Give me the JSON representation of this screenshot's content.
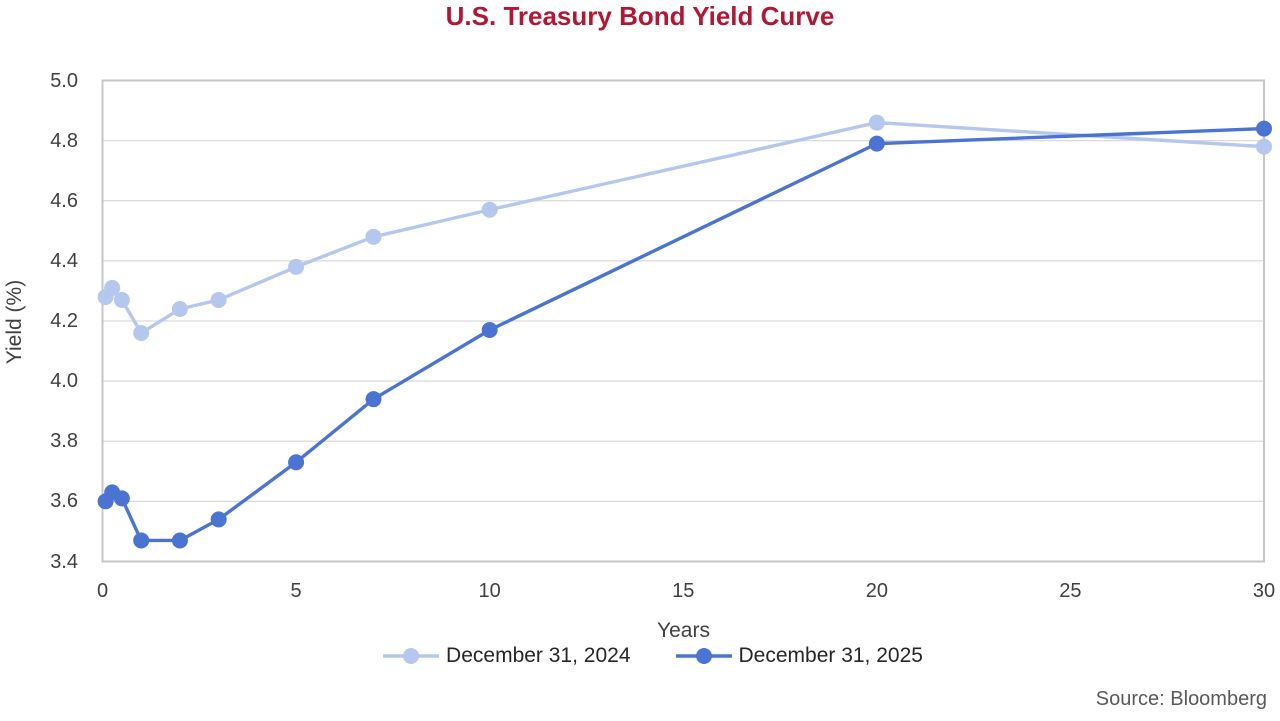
{
  "title": {
    "text": "U.S. Treasury Bond Yield Curve",
    "color": "#B21733"
  },
  "source": "Source: Bloomberg",
  "colors": {
    "gridline": "#D9D9D9",
    "plot_border": "#C6C6C6",
    "axis_text": "#404040",
    "series_2024": "#B5C7ED",
    "series_2025": "#4A73D2"
  },
  "chart_data": {
    "type": "line",
    "title": "U.S. Treasury Bond Yield Curve",
    "xlabel": "Years",
    "ylabel": "Yield (%)",
    "xlim": [
      0,
      30
    ],
    "ylim": [
      3.4,
      5.0
    ],
    "x_ticks": [
      0,
      5,
      10,
      15,
      20,
      25,
      30
    ],
    "y_ticks": [
      3.4,
      3.6,
      3.8,
      4.0,
      4.2,
      4.4,
      4.6,
      4.8,
      5.0
    ],
    "grid": "horizontal",
    "legend_position": "bottom",
    "x": [
      0.08,
      0.25,
      0.5,
      1,
      2,
      3,
      5,
      7,
      10,
      20,
      30
    ],
    "series": [
      {
        "name": "December 31, 2024",
        "color": "#B5C7ED",
        "values": [
          4.28,
          4.31,
          4.27,
          4.16,
          4.24,
          4.27,
          4.38,
          4.48,
          4.57,
          4.86,
          4.78
        ]
      },
      {
        "name": "December 31, 2025",
        "color": "#4A73D2",
        "values": [
          3.6,
          3.63,
          3.61,
          3.47,
          3.47,
          3.54,
          3.73,
          3.94,
          4.17,
          4.79,
          4.84
        ]
      }
    ]
  }
}
